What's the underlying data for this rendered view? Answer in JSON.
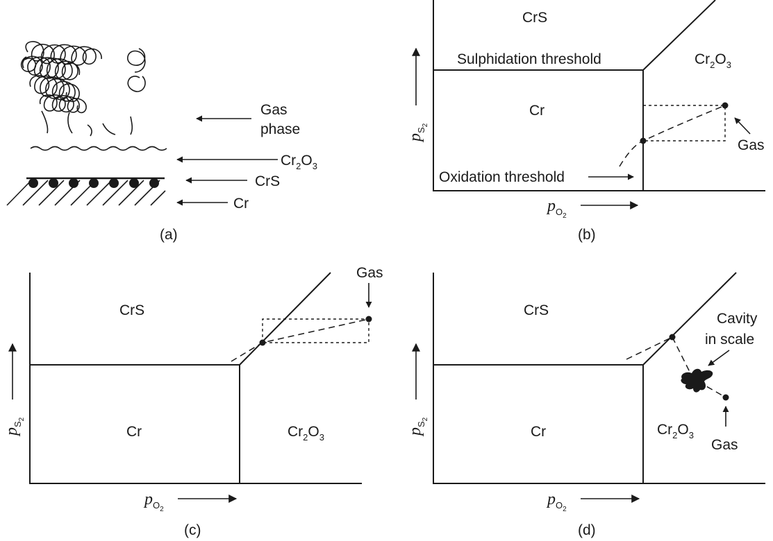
{
  "panel_a": {
    "label": "(a)",
    "gas_phase_line1": "Gas",
    "gas_phase_line2": "phase",
    "cr2o3": {
      "base": "Cr",
      "sub1": "2",
      "mid": "O",
      "sub2": "3"
    },
    "crs": "CrS",
    "cr": "Cr"
  },
  "panel_b": {
    "label": "(b)",
    "crs": "CrS",
    "cr2o3": {
      "base": "Cr",
      "sub1": "2",
      "mid": "O",
      "sub2": "3"
    },
    "cr": "Cr",
    "sulphidation_threshold": "Sulphidation threshold",
    "oxidation_threshold": "Oxidation threshold",
    "gas": "Gas",
    "y_axis": {
      "p": "p",
      "sub": "S",
      "subsub": "2"
    },
    "x_axis": {
      "p": "p",
      "sub": "O",
      "subsub": "2"
    }
  },
  "panel_c": {
    "label": "(c)",
    "crs": "CrS",
    "cr": "Cr",
    "cr2o3": {
      "base": "Cr",
      "sub1": "2",
      "mid": "O",
      "sub2": "3"
    },
    "gas": "Gas",
    "y_axis": {
      "p": "p",
      "sub": "S",
      "subsub": "2"
    },
    "x_axis": {
      "p": "p",
      "sub": "O",
      "subsub": "2"
    }
  },
  "panel_d": {
    "label": "(d)",
    "crs": "CrS",
    "cr": "Cr",
    "cr2o3": {
      "base": "Cr",
      "sub1": "2",
      "mid": "O",
      "sub2": "3"
    },
    "cavity_line1": "Cavity",
    "cavity_line2": "in scale",
    "gas": "Gas",
    "y_axis": {
      "p": "p",
      "sub": "S",
      "subsub": "2"
    },
    "x_axis": {
      "p": "p",
      "sub": "O",
      "subsub": "2"
    }
  },
  "colors": {
    "ink": "#1a1a1a",
    "background": "#ffffff"
  }
}
